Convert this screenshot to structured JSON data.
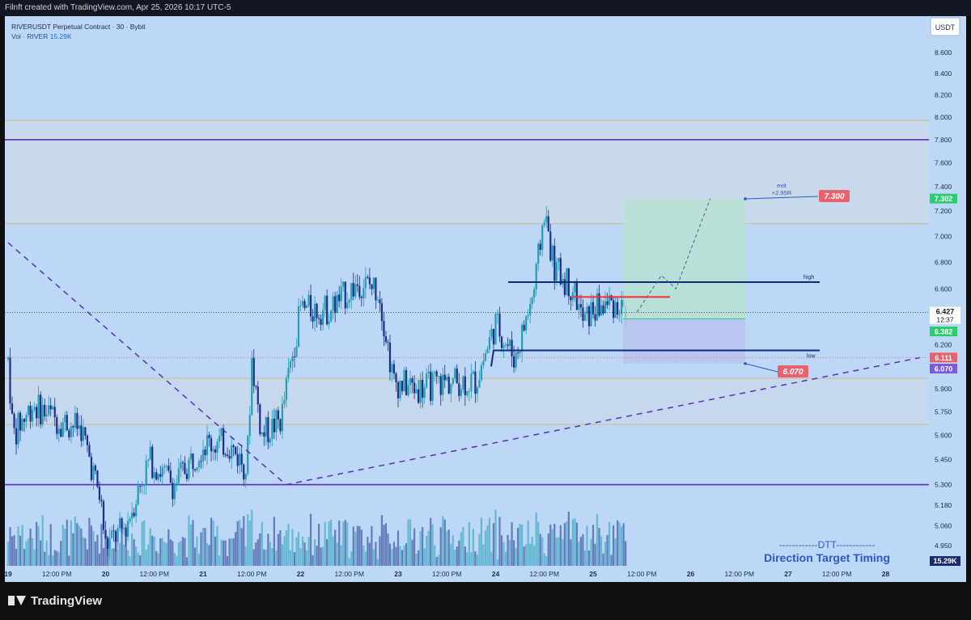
{
  "header": {
    "credit": "Filnft created with TradingView.com, Apr 25, 2026 10:17 UTC-5"
  },
  "legend": {
    "symbol_line": "RIVERUSDT Perpetual Contract · 30 · Bybit",
    "vol_label": "Vol · RIVER",
    "vol_value": "15.29K"
  },
  "price_scale": {
    "currency": "USDT",
    "current_price": "6.427",
    "countdown": "12:37"
  },
  "footer": {
    "brand": "TradingView"
  },
  "colors": {
    "background": "#bcd8f6",
    "up_candle": "#1e9fb4",
    "down_candle": "#1e2f8a",
    "zone_fill": "#cdd9e8",
    "purple_line": "#5b2fb5",
    "tan_line": "#d4b98c",
    "navy_line": "#102a7a",
    "red_line": "#ff2b2b",
    "target_box": "#b9e0d3",
    "stop_box": "#b7c4ef",
    "label_red": "#e8626d",
    "label_green": "#2ecc71",
    "label_purple": "#7b5bd6"
  },
  "chart_data": {
    "type": "candlestick",
    "title": "RIVERUSDT Perpetual Contract · 30 · Bybit",
    "timeframe": "30",
    "yscale": "log",
    "ylim": [
      4.82,
      9.0
    ],
    "y_ticks": [
      "8.600",
      "8.400",
      "8.200",
      "8.000",
      "7.800",
      "7.600",
      "7.400",
      "7.200",
      "7.000",
      "6.800",
      "6.600",
      "6.200",
      "5.900",
      "5.750",
      "5.600",
      "5.450",
      "5.300",
      "5.180",
      "5.060",
      "4.950"
    ],
    "x_ticks": [
      "19",
      "12:00 PM",
      "20",
      "12:00 PM",
      "21",
      "12:00 PM",
      "22",
      "12:00 PM",
      "23",
      "12:00 PM",
      "24",
      "12:00 PM",
      "25",
      "12:00 PM",
      "26",
      "12:00 PM",
      "27",
      "12:00 PM",
      "28"
    ],
    "price_path": [
      {
        "day": 19.0,
        "price": 6.1
      },
      {
        "day": 19.05,
        "price": 5.6
      },
      {
        "day": 19.25,
        "price": 5.8
      },
      {
        "day": 19.5,
        "price": 5.7
      },
      {
        "day": 19.75,
        "price": 5.65
      },
      {
        "day": 19.95,
        "price": 5.2
      },
      {
        "day": 20.0,
        "price": 4.95
      },
      {
        "day": 20.2,
        "price": 5.05
      },
      {
        "day": 20.45,
        "price": 5.45
      },
      {
        "day": 20.7,
        "price": 5.3
      },
      {
        "day": 21.0,
        "price": 5.55
      },
      {
        "day": 21.25,
        "price": 5.55
      },
      {
        "day": 21.45,
        "price": 5.4
      },
      {
        "day": 21.5,
        "price": 6.1
      },
      {
        "day": 21.6,
        "price": 5.6
      },
      {
        "day": 21.8,
        "price": 5.7
      },
      {
        "day": 22.0,
        "price": 6.45
      },
      {
        "day": 22.3,
        "price": 6.45
      },
      {
        "day": 22.6,
        "price": 6.65
      },
      {
        "day": 22.8,
        "price": 6.6
      },
      {
        "day": 22.95,
        "price": 5.95
      },
      {
        "day": 23.2,
        "price": 5.9
      },
      {
        "day": 23.5,
        "price": 5.95
      },
      {
        "day": 23.8,
        "price": 5.95
      },
      {
        "day": 24.0,
        "price": 6.35
      },
      {
        "day": 24.2,
        "price": 6.1
      },
      {
        "day": 24.4,
        "price": 6.6
      },
      {
        "day": 24.5,
        "price": 7.2
      },
      {
        "day": 24.6,
        "price": 6.75
      },
      {
        "day": 24.8,
        "price": 6.6
      },
      {
        "day": 24.9,
        "price": 6.35
      },
      {
        "day": 25.0,
        "price": 6.45
      },
      {
        "day": 25.2,
        "price": 6.5
      },
      {
        "day": 25.35,
        "price": 6.43
      }
    ],
    "volume": {
      "label": "Vol · RIVER",
      "last": "15.29K"
    },
    "levels": {
      "purple_horizontals": [
        7.8,
        5.3
      ],
      "tan_horizontals": [
        7.97,
        7.1,
        5.97,
        5.67
      ],
      "navy_high": {
        "price": 6.65,
        "label": "high"
      },
      "navy_low": {
        "price": 6.16,
        "label": "low"
      },
      "red_resistance": 6.54
    },
    "position": {
      "entry": 6.382,
      "target": 7.3,
      "stop": 6.07,
      "target_label": "7.300",
      "stop_label": "6.070",
      "annotation_line1": "exit",
      "annotation_line2": "+2.95R"
    },
    "trendlines": [
      {
        "style": "dashed",
        "from": {
          "day": 19.0,
          "price": 6.95
        },
        "to": {
          "day": 21.85,
          "price": 5.3
        }
      },
      {
        "style": "dashed",
        "from": {
          "day": 21.85,
          "price": 5.3
        },
        "to": {
          "day": 28.35,
          "price": 6.11
        }
      }
    ],
    "projection": [
      {
        "day": 25.45,
        "price": 6.43
      },
      {
        "day": 25.7,
        "price": 6.7
      },
      {
        "day": 25.85,
        "price": 6.6
      },
      {
        "day": 26.2,
        "price": 7.3
      }
    ],
    "price_labels": [
      {
        "value": "7.302",
        "color": "#2ecc71"
      },
      {
        "value": "6.382",
        "color": "#2ecc71"
      },
      {
        "value": "6.111",
        "color": "#e8626d"
      },
      {
        "value": "6.070",
        "color": "#7b5bd6"
      }
    ],
    "watermark": {
      "line1": "------------DTT------------",
      "line2": "Direction Target Timing"
    }
  }
}
